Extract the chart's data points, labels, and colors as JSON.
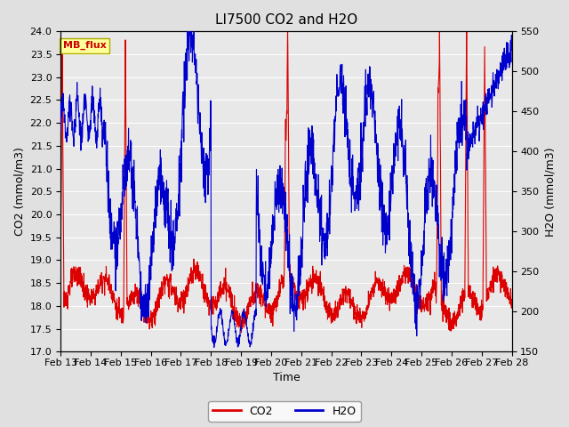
{
  "title": "LI7500 CO2 and H2O",
  "xlabel": "Time",
  "ylabel_left": "CO2 (mmol/m3)",
  "ylabel_right": "H2O (mmol/m3)",
  "ylim_left": [
    17.0,
    24.0
  ],
  "ylim_right": [
    150,
    550
  ],
  "yticks_left": [
    17.0,
    17.5,
    18.0,
    18.5,
    19.0,
    19.5,
    20.0,
    20.5,
    21.0,
    21.5,
    22.0,
    22.5,
    23.0,
    23.5,
    24.0
  ],
  "yticks_right": [
    150,
    200,
    250,
    300,
    350,
    400,
    450,
    500,
    550
  ],
  "xtick_labels": [
    "Feb 13",
    "Feb 14",
    "Feb 15",
    "Feb 16",
    "Feb 17",
    "Feb 18",
    "Feb 19",
    "Feb 20",
    "Feb 21",
    "Feb 22",
    "Feb 23",
    "Feb 24",
    "Feb 25",
    "Feb 26",
    "Feb 27",
    "Feb 28"
  ],
  "co2_color": "#dd0000",
  "h2o_color": "#0000cc",
  "fig_bg_color": "#e0e0e0",
  "plot_bg_color": "#e8e8e8",
  "legend_box_color": "#ffff99",
  "legend_box_edge": "#aaaa00",
  "annotation_text": "MB_flux",
  "annotation_color": "#cc0000",
  "grid_color": "#ffffff",
  "title_fontsize": 11,
  "axis_label_fontsize": 9,
  "tick_fontsize": 8,
  "legend_fontsize": 9,
  "line_width": 0.8
}
